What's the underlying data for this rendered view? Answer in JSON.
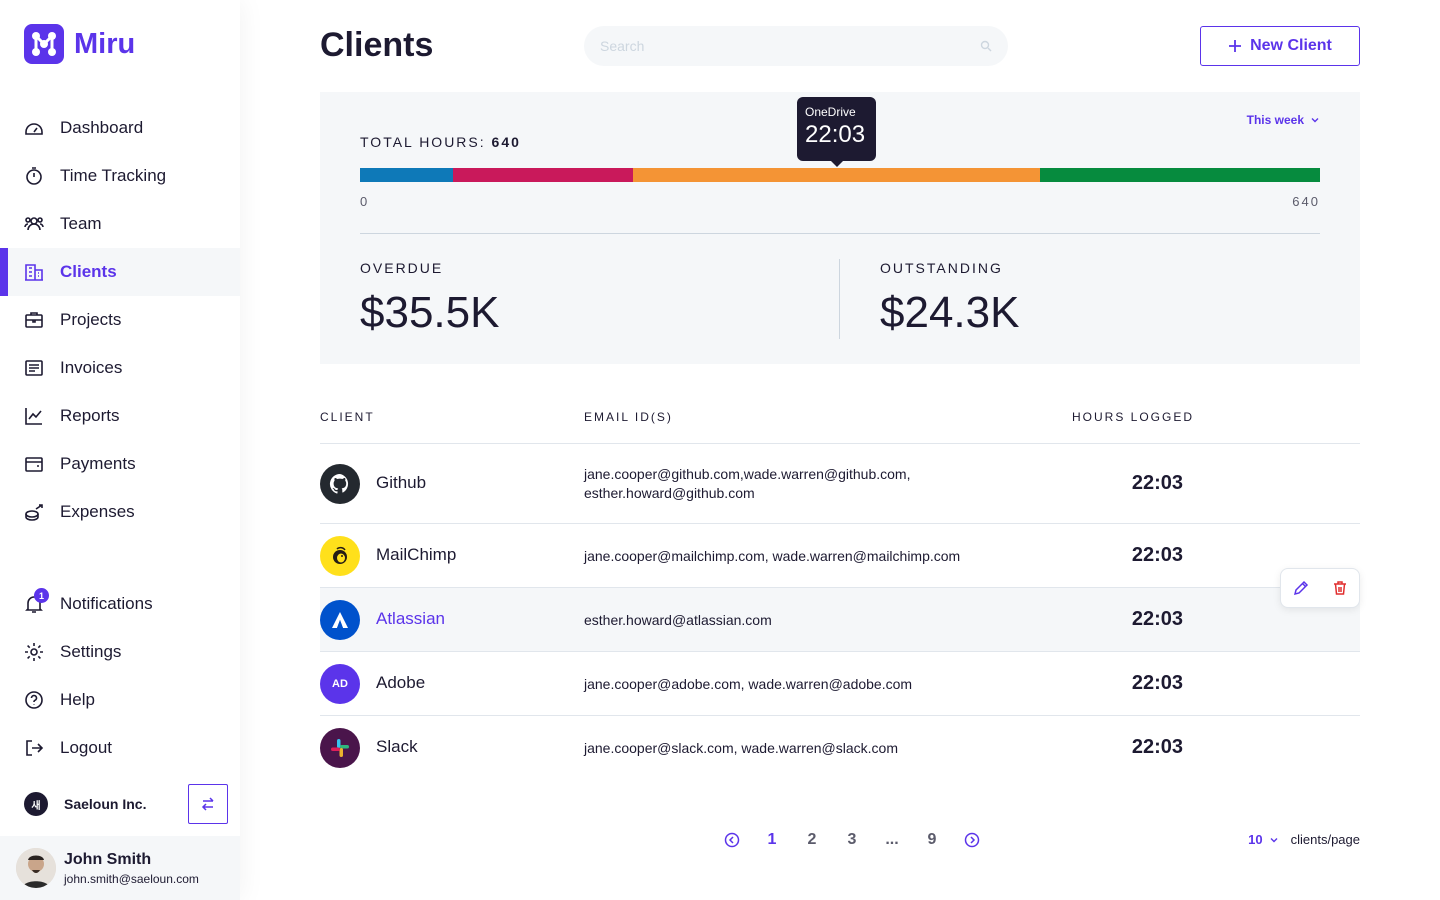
{
  "brand": {
    "name": "Miru",
    "color": "#5b34ea"
  },
  "sidebar": {
    "items": [
      {
        "label": "Dashboard",
        "icon": "dashboard-icon"
      },
      {
        "label": "Time Tracking",
        "icon": "stopwatch-icon"
      },
      {
        "label": "Team",
        "icon": "team-icon"
      },
      {
        "label": "Clients",
        "icon": "building-icon",
        "active": true
      },
      {
        "label": "Projects",
        "icon": "briefcase-icon"
      },
      {
        "label": "Invoices",
        "icon": "invoice-icon"
      },
      {
        "label": "Reports",
        "icon": "chart-icon"
      },
      {
        "label": "Payments",
        "icon": "wallet-icon"
      },
      {
        "label": "Expenses",
        "icon": "coins-icon"
      }
    ],
    "bottom_items": [
      {
        "label": "Notifications",
        "icon": "bell-icon",
        "badge": "1"
      },
      {
        "label": "Settings",
        "icon": "gear-icon"
      },
      {
        "label": "Help",
        "icon": "question-icon"
      },
      {
        "label": "Logout",
        "icon": "logout-icon"
      }
    ],
    "org": {
      "logo_text": "새",
      "name": "Saeloun Inc."
    },
    "user": {
      "name": "John Smith",
      "email": "john.smith@saeloun.com"
    }
  },
  "header": {
    "title": "Clients",
    "search_placeholder": "Search",
    "new_client_label": "New Client"
  },
  "summary": {
    "total_label": "TOTAL HOURS: ",
    "total_value": "640",
    "range_label": "This week",
    "bar_min": "0",
    "bar_max": "640",
    "segments": [
      {
        "client": "Github",
        "hours": 62,
        "color": "#0e79b8"
      },
      {
        "client": "MailChimp",
        "hours": 120,
        "color": "#c9195b"
      },
      {
        "client": "OneDrive",
        "hours": 271,
        "color": "#f49435"
      },
      {
        "client": "Slack",
        "hours": 187,
        "color": "#068b3e"
      }
    ],
    "tooltip": {
      "name": "OneDrive",
      "value": "22:03"
    },
    "overdue_label": "OVERDUE",
    "overdue_value": "$35.5K",
    "outstanding_label": "OUTSTANDING",
    "outstanding_value": "$24.3K"
  },
  "table": {
    "headers": {
      "client": "CLIENT",
      "email": "EMAIL ID(S)",
      "hours": "HOURS LOGGED"
    },
    "rows": [
      {
        "name": "Github",
        "emails": "jane.cooper@github.com,wade.warren@github.com, esther.howard@github.com",
        "hours": "22:03",
        "logo": "github-icon",
        "logo_color": "#24292f"
      },
      {
        "name": "MailChimp",
        "emails": "jane.cooper@mailchimp.com, wade.warren@mailchimp.com",
        "hours": "22:03",
        "logo": "mailchimp-icon",
        "logo_color": "#ffe01b"
      },
      {
        "name": "Atlassian",
        "emails": "esther.howard@atlassian.com",
        "hours": "22:03",
        "logo": "atlassian-icon",
        "logo_color": "#0052cc"
      },
      {
        "name": "Adobe",
        "emails": "jane.cooper@adobe.com, wade.warren@adobe.com",
        "hours": "22:03",
        "logo": "AD",
        "logo_color": "#5b34ea"
      },
      {
        "name": "Slack",
        "emails": "jane.cooper@slack.com, wade.warren@slack.com",
        "hours": "22:03",
        "logo": "slack-icon",
        "logo_color": "#4a154b"
      }
    ]
  },
  "pagination": {
    "pages": [
      "1",
      "2",
      "3",
      "...",
      "9"
    ],
    "current": "1",
    "per_page": "10",
    "per_page_label": "clients/page"
  }
}
